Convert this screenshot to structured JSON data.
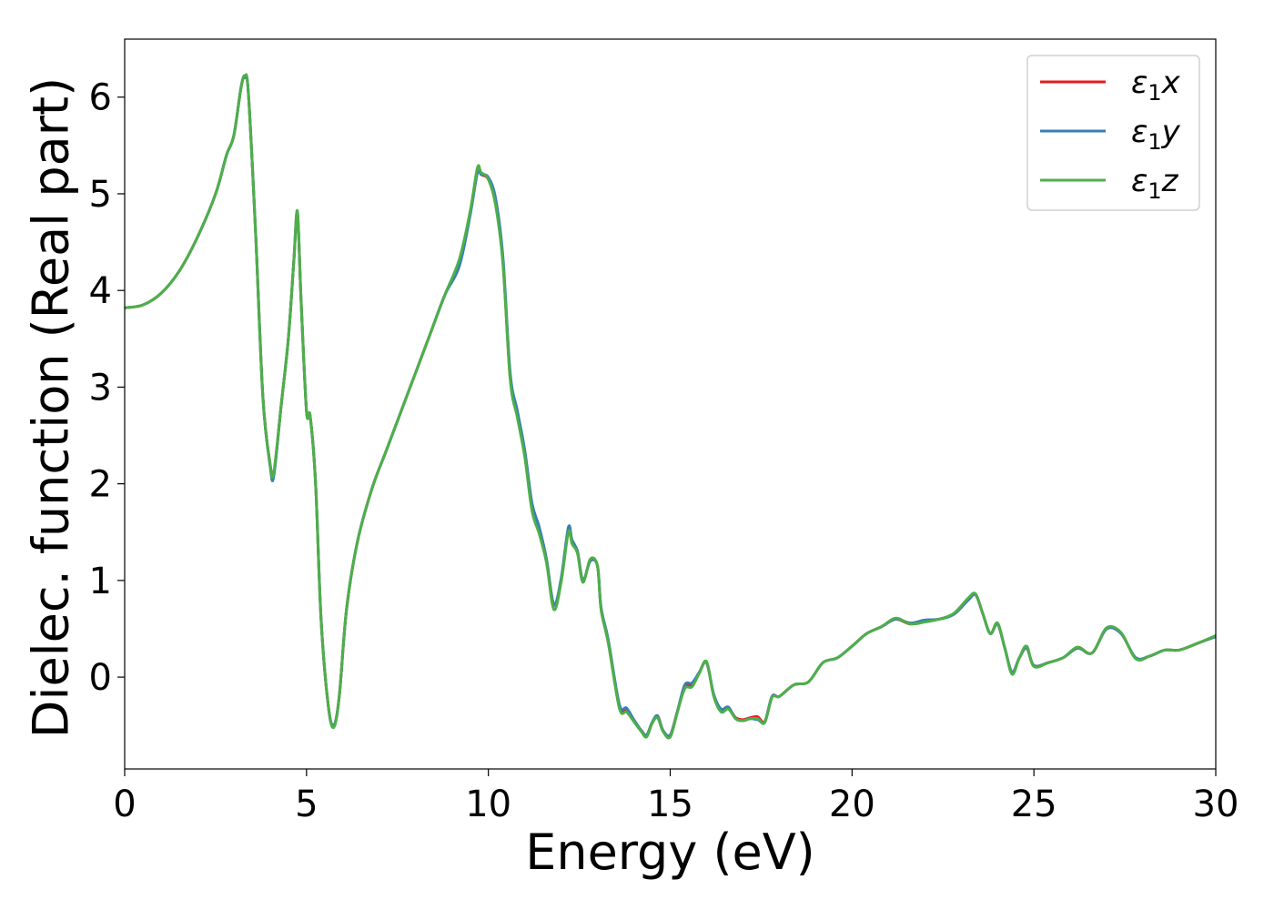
{
  "chart_data": {
    "type": "line",
    "xlabel": "Energy (eV)",
    "ylabel": "Dielec. function (Real part)",
    "xlim": [
      0,
      30
    ],
    "ylim": [
      -0.95,
      6.6
    ],
    "xticks": [
      0,
      5,
      10,
      15,
      20,
      25,
      30
    ],
    "xtick_labels": [
      "0",
      "5",
      "10",
      "15",
      "20",
      "25",
      "30"
    ],
    "yticks": [
      0,
      1,
      2,
      3,
      4,
      5,
      6
    ],
    "ytick_labels": [
      "0",
      "1",
      "2",
      "3",
      "4",
      "5",
      "6"
    ],
    "grid": false,
    "legend_position": "top-right",
    "series": [
      {
        "name": "ε₁x",
        "legend": {
          "base": "ε",
          "sub": "1",
          "var": "x"
        },
        "color": "#e41a1c",
        "x": [
          0,
          0.5,
          1.0,
          1.5,
          2.0,
          2.5,
          2.8,
          3.0,
          3.2,
          3.3,
          3.4,
          3.6,
          3.8,
          4.0,
          4.1,
          4.3,
          4.5,
          4.65,
          4.75,
          4.85,
          5.0,
          5.1,
          5.25,
          5.4,
          5.6,
          5.75,
          5.9,
          6.1,
          6.4,
          6.8,
          7.2,
          7.6,
          8.0,
          8.4,
          8.8,
          9.2,
          9.5,
          9.7,
          9.8,
          10.0,
          10.2,
          10.4,
          10.6,
          10.8,
          11.0,
          11.2,
          11.4,
          11.6,
          11.8,
          12.0,
          12.2,
          12.3,
          12.45,
          12.6,
          12.8,
          13.0,
          13.1,
          13.3,
          13.6,
          13.8,
          14.0,
          14.2,
          14.35,
          14.5,
          14.65,
          14.8,
          15.0,
          15.2,
          15.4,
          15.6,
          15.8,
          16.0,
          16.2,
          16.4,
          16.6,
          16.8,
          17.0,
          17.2,
          17.4,
          17.6,
          17.8,
          18.0,
          18.4,
          18.8,
          19.2,
          19.6,
          20.0,
          20.4,
          20.8,
          21.2,
          21.6,
          22.0,
          22.4,
          22.8,
          23.2,
          23.4,
          23.6,
          23.8,
          24.0,
          24.2,
          24.4,
          24.6,
          24.8,
          25.0,
          25.4,
          25.8,
          26.2,
          26.6,
          27.0,
          27.4,
          27.8,
          28.2,
          28.6,
          29.0,
          29.5,
          30.0
        ],
        "values": [
          3.82,
          3.85,
          3.97,
          4.2,
          4.55,
          5.0,
          5.4,
          5.6,
          6.1,
          6.2,
          6.05,
          4.6,
          2.9,
          2.2,
          2.1,
          2.8,
          3.5,
          4.3,
          4.8,
          3.9,
          2.75,
          2.7,
          2.0,
          0.6,
          -0.3,
          -0.5,
          -0.2,
          0.7,
          1.4,
          1.95,
          2.35,
          2.75,
          3.15,
          3.55,
          3.95,
          4.3,
          4.8,
          5.25,
          5.2,
          5.15,
          4.9,
          4.3,
          3.1,
          2.7,
          2.3,
          1.75,
          1.5,
          1.2,
          0.75,
          1.0,
          1.52,
          1.4,
          1.3,
          1.0,
          1.2,
          1.15,
          0.7,
          0.35,
          -0.3,
          -0.35,
          -0.45,
          -0.55,
          -0.6,
          -0.48,
          -0.4,
          -0.55,
          -0.6,
          -0.35,
          -0.1,
          -0.08,
          0.05,
          0.15,
          -0.2,
          -0.35,
          -0.32,
          -0.42,
          -0.44,
          -0.42,
          -0.41,
          -0.46,
          -0.2,
          -0.2,
          -0.08,
          -0.05,
          0.15,
          0.2,
          0.32,
          0.45,
          0.52,
          0.6,
          0.55,
          0.58,
          0.6,
          0.65,
          0.8,
          0.85,
          0.65,
          0.45,
          0.55,
          0.3,
          0.05,
          0.2,
          0.3,
          0.12,
          0.15,
          0.2,
          0.3,
          0.25,
          0.5,
          0.45,
          0.2,
          0.22,
          0.28,
          0.28,
          0.35,
          0.42
        ]
      },
      {
        "name": "ε₁y",
        "legend": {
          "base": "ε",
          "sub": "1",
          "var": "y"
        },
        "color": "#377eb8",
        "x": [
          0,
          0.5,
          1.0,
          1.5,
          2.0,
          2.5,
          2.8,
          3.0,
          3.2,
          3.3,
          3.4,
          3.6,
          3.8,
          4.0,
          4.1,
          4.3,
          4.5,
          4.65,
          4.75,
          4.85,
          5.0,
          5.1,
          5.25,
          5.4,
          5.6,
          5.75,
          5.9,
          6.1,
          6.4,
          6.8,
          7.2,
          7.6,
          8.0,
          8.4,
          8.8,
          9.2,
          9.5,
          9.7,
          9.8,
          10.0,
          10.2,
          10.4,
          10.6,
          10.8,
          11.0,
          11.2,
          11.4,
          11.6,
          11.8,
          12.0,
          12.2,
          12.3,
          12.45,
          12.6,
          12.8,
          13.0,
          13.1,
          13.3,
          13.6,
          13.8,
          14.0,
          14.2,
          14.35,
          14.5,
          14.65,
          14.8,
          15.0,
          15.2,
          15.4,
          15.6,
          15.8,
          16.0,
          16.2,
          16.4,
          16.6,
          16.8,
          17.0,
          17.2,
          17.4,
          17.6,
          17.8,
          18.0,
          18.4,
          18.8,
          19.2,
          19.6,
          20.0,
          20.4,
          20.8,
          21.2,
          21.6,
          22.0,
          22.4,
          22.8,
          23.2,
          23.4,
          23.6,
          23.8,
          24.0,
          24.2,
          24.4,
          24.6,
          24.8,
          25.0,
          25.4,
          25.8,
          26.2,
          26.6,
          27.0,
          27.4,
          27.8,
          28.2,
          28.6,
          29.0,
          29.5,
          30.0
        ],
        "values": [
          3.82,
          3.85,
          3.97,
          4.2,
          4.55,
          5.0,
          5.4,
          5.6,
          6.1,
          6.2,
          6.05,
          4.6,
          2.9,
          2.18,
          2.08,
          2.8,
          3.5,
          4.3,
          4.8,
          3.9,
          2.75,
          2.7,
          2.0,
          0.6,
          -0.3,
          -0.5,
          -0.2,
          0.7,
          1.4,
          1.95,
          2.35,
          2.75,
          3.15,
          3.55,
          3.95,
          4.25,
          4.78,
          5.22,
          5.2,
          5.17,
          4.95,
          4.35,
          3.15,
          2.75,
          2.35,
          1.8,
          1.55,
          1.22,
          0.75,
          1.02,
          1.55,
          1.42,
          1.3,
          1.0,
          1.2,
          1.15,
          0.72,
          0.38,
          -0.28,
          -0.32,
          -0.44,
          -0.55,
          -0.6,
          -0.47,
          -0.4,
          -0.55,
          -0.6,
          -0.35,
          -0.08,
          -0.06,
          0.05,
          0.15,
          -0.18,
          -0.33,
          -0.31,
          -0.43,
          -0.45,
          -0.43,
          -0.44,
          -0.46,
          -0.2,
          -0.2,
          -0.08,
          -0.05,
          0.15,
          0.2,
          0.32,
          0.45,
          0.52,
          0.6,
          0.56,
          0.59,
          0.6,
          0.65,
          0.8,
          0.85,
          0.65,
          0.45,
          0.55,
          0.3,
          0.05,
          0.2,
          0.3,
          0.12,
          0.15,
          0.2,
          0.3,
          0.25,
          0.5,
          0.45,
          0.2,
          0.22,
          0.28,
          0.28,
          0.35,
          0.42
        ]
      },
      {
        "name": "ε₁z",
        "legend": {
          "base": "ε",
          "sub": "1",
          "var": "z"
        },
        "color": "#4daf4a",
        "x": [
          0,
          0.5,
          1.0,
          1.5,
          2.0,
          2.5,
          2.8,
          3.0,
          3.2,
          3.3,
          3.4,
          3.6,
          3.8,
          4.0,
          4.1,
          4.3,
          4.5,
          4.65,
          4.75,
          4.85,
          5.0,
          5.1,
          5.25,
          5.4,
          5.6,
          5.75,
          5.9,
          6.1,
          6.4,
          6.8,
          7.2,
          7.6,
          8.0,
          8.4,
          8.8,
          9.2,
          9.5,
          9.7,
          9.8,
          10.0,
          10.2,
          10.4,
          10.6,
          10.8,
          11.0,
          11.2,
          11.4,
          11.6,
          11.8,
          12.0,
          12.2,
          12.3,
          12.45,
          12.6,
          12.8,
          13.0,
          13.1,
          13.3,
          13.6,
          13.8,
          14.0,
          14.2,
          14.35,
          14.5,
          14.65,
          14.8,
          15.0,
          15.2,
          15.4,
          15.6,
          15.8,
          16.0,
          16.2,
          16.4,
          16.6,
          16.8,
          17.0,
          17.2,
          17.4,
          17.6,
          17.8,
          18.0,
          18.4,
          18.8,
          19.2,
          19.6,
          20.0,
          20.4,
          20.8,
          21.2,
          21.6,
          22.0,
          22.4,
          22.8,
          23.2,
          23.4,
          23.6,
          23.8,
          24.0,
          24.2,
          24.4,
          24.6,
          24.8,
          25.0,
          25.4,
          25.8,
          26.2,
          26.6,
          27.0,
          27.4,
          27.8,
          28.2,
          28.6,
          29.0,
          29.5,
          30.0
        ],
        "values": [
          3.82,
          3.85,
          3.97,
          4.2,
          4.55,
          5.0,
          5.4,
          5.6,
          6.1,
          6.22,
          6.05,
          4.6,
          2.9,
          2.2,
          2.12,
          2.8,
          3.5,
          4.3,
          4.82,
          3.9,
          2.75,
          2.7,
          2.0,
          0.6,
          -0.3,
          -0.52,
          -0.2,
          0.7,
          1.4,
          1.95,
          2.35,
          2.75,
          3.15,
          3.55,
          3.95,
          4.32,
          4.82,
          5.27,
          5.22,
          5.15,
          4.88,
          4.28,
          3.08,
          2.68,
          2.28,
          1.72,
          1.48,
          1.18,
          0.7,
          0.98,
          1.5,
          1.38,
          1.28,
          0.98,
          1.22,
          1.15,
          0.7,
          0.35,
          -0.32,
          -0.36,
          -0.46,
          -0.56,
          -0.62,
          -0.48,
          -0.42,
          -0.56,
          -0.62,
          -0.36,
          -0.12,
          -0.1,
          0.04,
          0.16,
          -0.2,
          -0.36,
          -0.33,
          -0.43,
          -0.45,
          -0.43,
          -0.43,
          -0.47,
          -0.21,
          -0.2,
          -0.08,
          -0.05,
          0.15,
          0.2,
          0.32,
          0.45,
          0.52,
          0.61,
          0.55,
          0.57,
          0.6,
          0.66,
          0.82,
          0.86,
          0.65,
          0.45,
          0.56,
          0.3,
          0.03,
          0.2,
          0.32,
          0.11,
          0.15,
          0.2,
          0.31,
          0.25,
          0.51,
          0.46,
          0.19,
          0.22,
          0.28,
          0.28,
          0.35,
          0.43
        ]
      }
    ]
  }
}
